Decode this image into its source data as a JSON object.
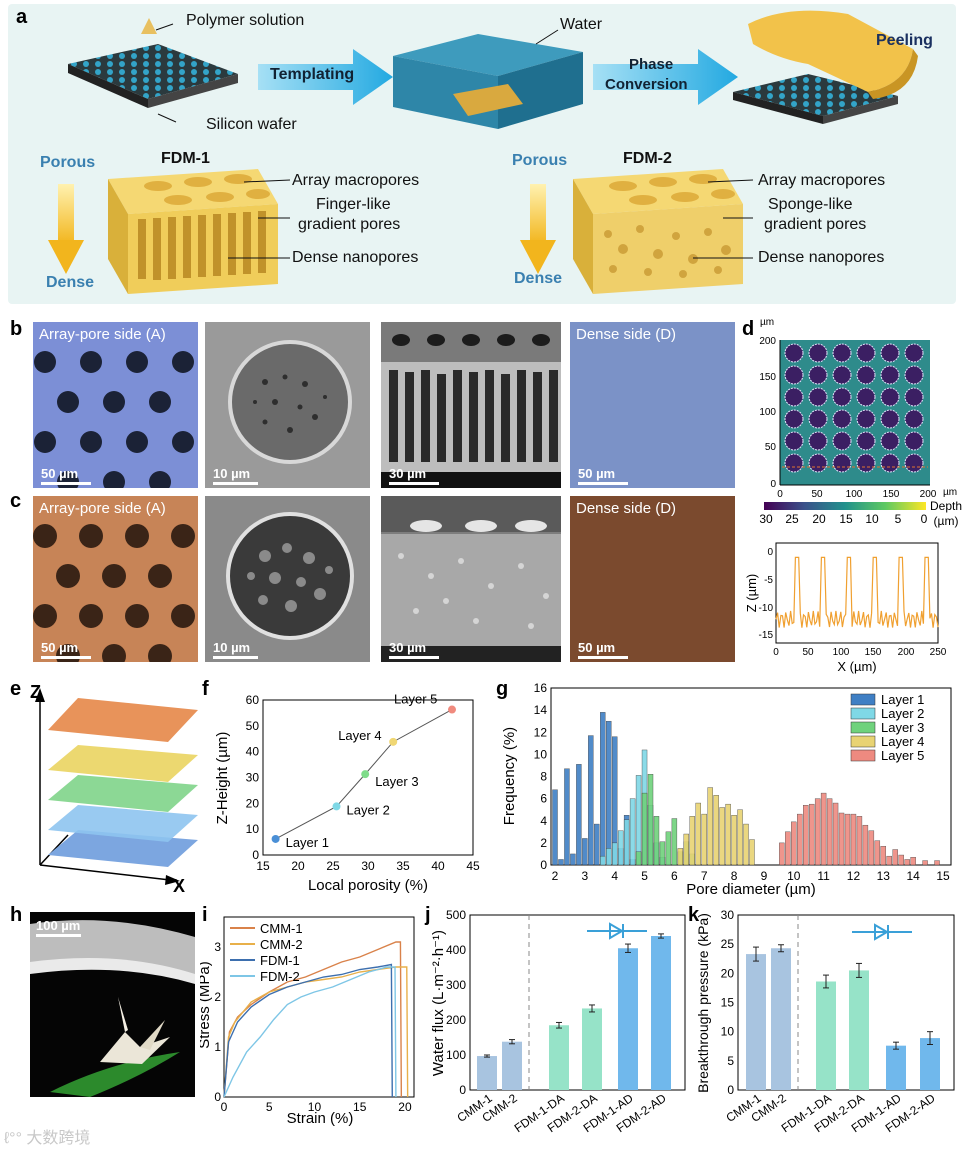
{
  "panel_a": {
    "label": "a",
    "polymer_solution": "Polymer solution",
    "silicon_wafer": "Silicon wafer",
    "templating": "Templating",
    "water": "Water",
    "phase_conversion": [
      "Phase",
      "Conversion"
    ],
    "peeling": "Peeling",
    "porous": "Porous",
    "dense": "Dense",
    "fdm1": {
      "title": "FDM-1",
      "labels": [
        "Array macropores",
        "Finger-like",
        "gradient pores",
        "Dense nanopores"
      ]
    },
    "fdm2": {
      "title": "FDM-2",
      "labels": [
        "Array macropores",
        "Sponge-like",
        "gradient pores",
        "Dense nanopores"
      ]
    }
  },
  "panel_b": {
    "label": "b",
    "tiles": [
      "Array-pore side (A)",
      "",
      "",
      "Dense side (D)"
    ],
    "scales": [
      "50 µm",
      "10 µm",
      "30 µm",
      "50 µm"
    ]
  },
  "panel_c": {
    "label": "c",
    "tiles": [
      "Array-pore side (A)",
      "",
      "",
      "Dense side (D)"
    ],
    "scales": [
      "50 µm",
      "10 µm",
      "30 µm",
      "50 µm"
    ]
  },
  "panel_d": {
    "label": "d",
    "map_unit": "µm",
    "map_yticks": [
      "200",
      "150",
      "100",
      "50",
      "0"
    ],
    "map_xticks": [
      "0",
      "50",
      "100",
      "150",
      "200"
    ],
    "map_xunit": "µm",
    "colorbar_ticks": [
      "30",
      "25",
      "20",
      "15",
      "10",
      "5",
      "0"
    ],
    "colorbar_label": [
      "Depth",
      "(µm)"
    ],
    "profile": {
      "xlabel": "X (µm)",
      "ylabel": "Z (µm)",
      "xticks": [
        "0",
        "50",
        "100",
        "150",
        "200",
        "250"
      ],
      "yticks": [
        "0",
        "-5",
        "-10",
        "-15"
      ]
    }
  },
  "panel_e": {
    "label": "e",
    "z": "Z",
    "x": "X"
  },
  "panel_f": {
    "label": "f",
    "chart_data": {
      "type": "scatter",
      "title": "",
      "xlabel": "Local porosity (%)",
      "ylabel": "Z-Height (µm)",
      "xlim": [
        15,
        45
      ],
      "ylim": [
        0,
        60
      ],
      "xticks": [
        "15",
        "20",
        "25",
        "30",
        "35",
        "40",
        "45"
      ],
      "yticks": [
        "0",
        "10",
        "20",
        "30",
        "40",
        "50",
        "60"
      ],
      "points": [
        {
          "name": "Layer 1",
          "x": 16.8,
          "y": 6.2,
          "color": "#4a8fd6"
        },
        {
          "name": "Layer 2",
          "x": 25.5,
          "y": 18.8,
          "color": "#7fd8e6"
        },
        {
          "name": "Layer 3",
          "x": 29.6,
          "y": 31.3,
          "color": "#7fdc8a"
        },
        {
          "name": "Layer 4",
          "x": 33.6,
          "y": 43.8,
          "color": "#f0d774"
        },
        {
          "name": "Layer 5",
          "x": 42.0,
          "y": 56.3,
          "color": "#f08a7e"
        }
      ]
    }
  },
  "panel_g": {
    "label": "g",
    "chart_data": {
      "type": "bar",
      "xlabel": "Pore diameter (µm)",
      "ylabel": "Frequency (%)",
      "xlim": [
        2,
        15
      ],
      "ylim": [
        0,
        16
      ],
      "xticks": [
        "2",
        "3",
        "4",
        "5",
        "6",
        "7",
        "8",
        "9",
        "10",
        "11",
        "12",
        "13",
        "14",
        "15"
      ],
      "yticks": [
        "0",
        "2",
        "4",
        "6",
        "8",
        "10",
        "12",
        "14",
        "16"
      ],
      "legend": "top-right",
      "series": [
        {
          "name": "Layer 1",
          "color": "#3f7fc4",
          "x": [
            2.0,
            2.2,
            2.4,
            2.6,
            2.8,
            3.0,
            3.2,
            3.4,
            3.6,
            3.8,
            4.0,
            4.2,
            4.4,
            4.6
          ],
          "values": [
            6.8,
            0.5,
            8.7,
            1.0,
            9.1,
            2.4,
            11.7,
            3.7,
            13.8,
            13.0,
            11.6,
            1.5,
            4.5,
            0.5
          ]
        },
        {
          "name": "Layer 2",
          "color": "#7fd8e6",
          "x": [
            3.6,
            3.8,
            4.0,
            4.2,
            4.4,
            4.6,
            4.8,
            5.0,
            5.2,
            5.4,
            5.6
          ],
          "values": [
            0.8,
            1.5,
            2.0,
            3.1,
            4.1,
            6.0,
            8.1,
            10.4,
            5.4,
            2.0,
            0.7
          ]
        },
        {
          "name": "Layer 3",
          "color": "#6fd27c",
          "x": [
            4.8,
            5.0,
            5.2,
            5.4,
            5.6,
            5.8,
            6.0,
            6.2,
            6.4,
            6.6
          ],
          "values": [
            1.2,
            6.5,
            8.2,
            4.4,
            2.1,
            3.0,
            4.2,
            1.2,
            2.1,
            1.0
          ]
        },
        {
          "name": "Layer 4",
          "color": "#e8d373",
          "x": [
            6.2,
            6.4,
            6.6,
            6.8,
            7.0,
            7.2,
            7.4,
            7.6,
            7.8,
            8.0,
            8.2,
            8.4,
            8.6
          ],
          "values": [
            1.5,
            2.8,
            4.4,
            5.6,
            4.6,
            7.0,
            6.3,
            5.2,
            5.5,
            4.5,
            5.0,
            3.7,
            2.3
          ]
        },
        {
          "name": "Layer 5",
          "color": "#ee8a80",
          "x": [
            9.6,
            9.8,
            10.0,
            10.2,
            10.4,
            10.6,
            10.8,
            11.0,
            11.2,
            11.4,
            11.6,
            11.8,
            12.0,
            12.2,
            12.4,
            12.6,
            12.8,
            13.0,
            13.2,
            13.4,
            13.6,
            13.8,
            14.0,
            14.4,
            14.8
          ],
          "values": [
            2.0,
            3.0,
            3.9,
            4.6,
            5.4,
            5.5,
            6.0,
            6.5,
            6.0,
            5.6,
            4.7,
            4.6,
            4.6,
            4.4,
            3.6,
            3.1,
            2.2,
            1.7,
            0.8,
            1.4,
            0.9,
            0.5,
            0.7,
            0.4,
            0.4
          ]
        }
      ]
    }
  },
  "panel_h": {
    "label": "h",
    "scale": "100 µm"
  },
  "panel_i": {
    "label": "i",
    "chart_data": {
      "type": "line",
      "xlabel": "Strain (%)",
      "ylabel": "Stress (MPa)",
      "xlim": [
        0,
        21
      ],
      "ylim": [
        0,
        3.6
      ],
      "xticks": [
        "0",
        "5",
        "10",
        "15",
        "20"
      ],
      "yticks": [
        "0",
        "1",
        "2",
        "3"
      ],
      "series": [
        {
          "name": "CMM-1",
          "color": "#d9824a",
          "x": [
            0,
            0.6,
            1.5,
            3,
            5,
            7,
            9,
            11,
            13,
            15,
            17,
            19,
            19.5,
            19.6
          ],
          "y": [
            0,
            1.3,
            1.6,
            1.85,
            2.1,
            2.3,
            2.4,
            2.55,
            2.7,
            2.8,
            2.95,
            3.1,
            3.1,
            0
          ]
        },
        {
          "name": "CMM-2",
          "color": "#e8b04a",
          "x": [
            0,
            0.5,
            1.2,
            3,
            5,
            7,
            9,
            11,
            13,
            15,
            17,
            19,
            20.2,
            20.3
          ],
          "y": [
            0,
            1.2,
            1.5,
            1.9,
            2.1,
            2.2,
            2.3,
            2.35,
            2.4,
            2.5,
            2.55,
            2.6,
            2.6,
            0
          ]
        },
        {
          "name": "FDM-1",
          "color": "#3d6fae",
          "x": [
            0,
            0.5,
            1.5,
            3,
            5,
            7,
            9,
            11,
            13,
            15,
            17,
            18.5,
            18.6
          ],
          "y": [
            0,
            1.1,
            1.5,
            1.8,
            2.05,
            2.2,
            2.3,
            2.4,
            2.45,
            2.55,
            2.6,
            2.65,
            0
          ]
        },
        {
          "name": "FDM-2",
          "color": "#7ec6e6",
          "x": [
            0,
            1,
            2.5,
            4,
            5.5,
            7,
            8.5,
            10,
            12,
            14,
            16,
            18,
            18.9,
            19.0
          ],
          "y": [
            0,
            0.4,
            0.9,
            1.2,
            1.55,
            1.85,
            2.0,
            2.1,
            2.2,
            2.35,
            2.5,
            2.6,
            2.6,
            0
          ]
        }
      ]
    }
  },
  "panel_j": {
    "label": "j",
    "chart_data": {
      "type": "bar",
      "ylabel": "Water flux (L·m⁻²·h⁻¹)",
      "ylim": [
        0,
        500
      ],
      "yticks": [
        "0",
        "100",
        "200",
        "300",
        "400",
        "500"
      ],
      "categories": [
        "CMM-1",
        "CMM-2",
        "FDM-1-DA",
        "FDM-2-DA",
        "FDM-1-AD",
        "FDM-2-AD"
      ],
      "values": [
        97,
        138,
        185,
        233,
        405,
        440
      ],
      "errors": [
        3,
        6,
        8,
        10,
        12,
        6
      ],
      "colors": [
        "#a8c4e0",
        "#a8c4e0",
        "#96e3c8",
        "#96e3c8",
        "#70b8ec",
        "#70b8ec"
      ]
    }
  },
  "panel_k": {
    "label": "k",
    "chart_data": {
      "type": "bar",
      "ylabel": "Breakthrough pressure (kPa)",
      "ylim": [
        0,
        30
      ],
      "yticks": [
        "0",
        "5",
        "10",
        "15",
        "20",
        "25",
        "30"
      ],
      "categories": [
        "CMM-1",
        "CMM-2",
        "FDM-1-DA",
        "FDM-2-DA",
        "FDM-1-AD",
        "FDM-2-AD"
      ],
      "values": [
        23.3,
        24.3,
        18.6,
        20.5,
        7.6,
        8.9
      ],
      "errors": [
        1.2,
        0.6,
        1.1,
        1.2,
        0.6,
        1.1
      ],
      "colors": [
        "#a8c4e0",
        "#a8c4e0",
        "#96e3c8",
        "#96e3c8",
        "#70b8ec",
        "#70b8ec"
      ]
    }
  },
  "watermark": "大数跨境"
}
